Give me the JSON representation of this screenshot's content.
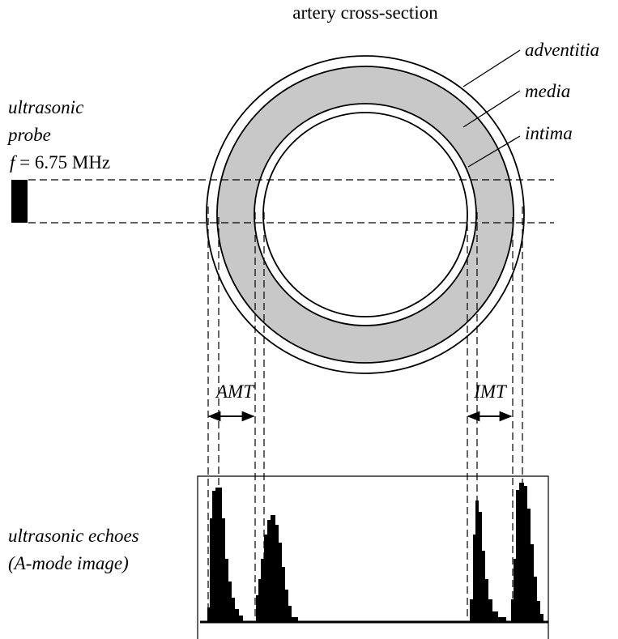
{
  "title": "artery cross-section",
  "layers": {
    "outer": "adventitia",
    "middle": "media",
    "inner": "intima"
  },
  "probe": {
    "lines": [
      "ultrasonic",
      "probe"
    ],
    "frequency": {
      "symbol": "f",
      "text": "= 6.75 MHz"
    }
  },
  "measures": {
    "left": "AMT",
    "right": "IMT"
  },
  "echoes": {
    "lines": [
      "ultrasonic echoes",
      "(A-mode image)"
    ]
  }
}
